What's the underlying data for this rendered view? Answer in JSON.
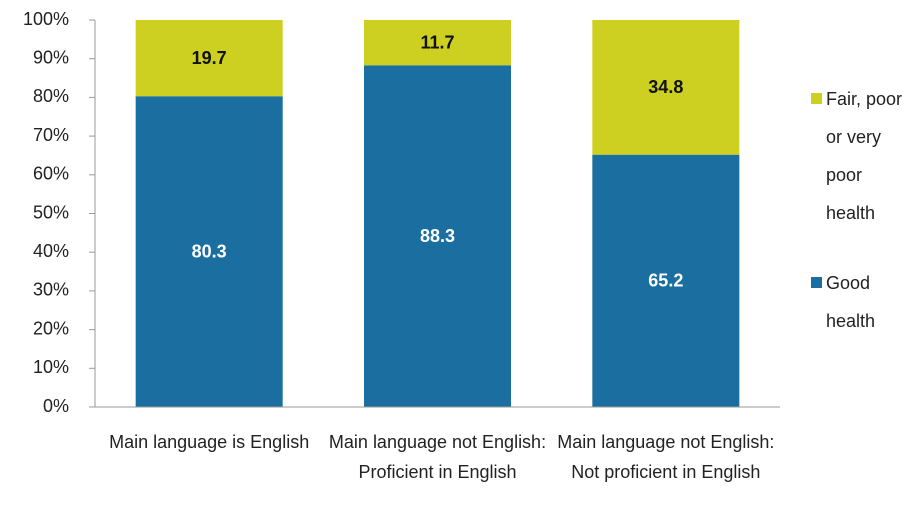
{
  "chart_data": {
    "type": "stacked_bar",
    "categories": [
      "Main language is English",
      "Main language not English: Proficient in English",
      "Main language not English: Not proficient in English"
    ],
    "series": [
      {
        "name": "Good health",
        "color": "#1a6fa0",
        "values": [
          80.3,
          88.3,
          65.2
        ]
      },
      {
        "name": "Fair, poor or very poor health",
        "color": "#cdd020",
        "values": [
          19.7,
          11.7,
          34.8
        ]
      }
    ],
    "ylim": [
      0,
      100
    ],
    "yticks": [
      {
        "value": 0,
        "label": "0%"
      },
      {
        "value": 10,
        "label": "10%"
      },
      {
        "value": 20,
        "label": "20%"
      },
      {
        "value": 30,
        "label": "30%"
      },
      {
        "value": 40,
        "label": "40%"
      },
      {
        "value": 50,
        "label": "50%"
      },
      {
        "value": 60,
        "label": "60%"
      },
      {
        "value": 70,
        "label": "70%"
      },
      {
        "value": 80,
        "label": "80%"
      },
      {
        "value": 90,
        "label": "90%"
      },
      {
        "value": 100,
        "label": "100%"
      }
    ],
    "grid": false,
    "legend": "right"
  }
}
